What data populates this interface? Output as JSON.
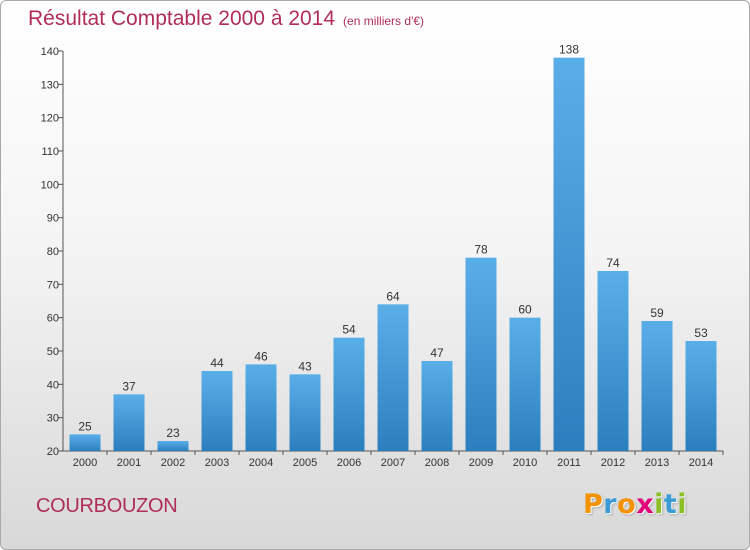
{
  "header": {
    "title": "Résultat Comptable 2000 à 2014",
    "subtitle": "(en milliers d'€)"
  },
  "footer": {
    "commune": "COURBOUZON",
    "brand": [
      "P",
      "r",
      "o",
      "x",
      "i",
      "t",
      "i"
    ]
  },
  "colors": {
    "title": "#b02d5b",
    "bar_top": "#5aaee8",
    "bar_bottom": "#2b7fbe",
    "brand": [
      "#f39200",
      "#3a9bd6",
      "#f39200",
      "#e2007a",
      "#8cbf26",
      "#3a9bd6",
      "#8cbf26"
    ]
  },
  "chart_data": {
    "type": "bar",
    "title": "Résultat Comptable 2000 à 2014",
    "subtitle": "(en milliers d'€)",
    "categories": [
      "2000",
      "2001",
      "2002",
      "2003",
      "2004",
      "2005",
      "2006",
      "2007",
      "2008",
      "2009",
      "2010",
      "2011",
      "2012",
      "2013",
      "2014"
    ],
    "values": [
      25,
      37,
      23,
      44,
      46,
      43,
      54,
      64,
      47,
      78,
      60,
      138,
      74,
      59,
      53
    ],
    "ylim": [
      20,
      140
    ],
    "yticks": [
      20,
      30,
      40,
      50,
      60,
      70,
      80,
      90,
      100,
      110,
      120,
      130,
      140
    ],
    "grid": false,
    "data_labels": true
  }
}
